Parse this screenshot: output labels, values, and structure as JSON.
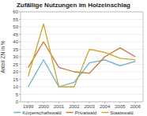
{
  "chart_data": {
    "type": "line",
    "title": "Zufällige Nutzungen im Holzeinschlag",
    "ylabel": "Anteil ZN in %",
    "x": [
      1999,
      2000,
      2001,
      2002,
      2003,
      2004,
      2005,
      2006
    ],
    "xlim": [
      1998.5,
      2006.5
    ],
    "xticks": [
      1999,
      2000,
      2001,
      2002,
      2003,
      2004,
      2005,
      2006
    ],
    "ylim": [
      0,
      60
    ],
    "yticks": [
      0,
      5,
      10,
      15,
      20,
      25,
      30,
      35,
      40,
      45,
      50,
      55,
      60
    ],
    "grid": true,
    "legend": "bottom",
    "series": [
      {
        "name": "Körperschaftswald",
        "color": "#6ab0c8",
        "values": [
          10,
          28,
          10,
          13,
          26,
          28,
          24,
          27
        ]
      },
      {
        "name": "Privatwald",
        "color": "#c87832",
        "values": [
          23,
          40,
          23,
          20,
          19,
          30,
          36,
          30
        ]
      },
      {
        "name": "Staatswald",
        "color": "#c8a832",
        "values": [
          17,
          52,
          10,
          10,
          35,
          33,
          29,
          28
        ]
      }
    ]
  }
}
